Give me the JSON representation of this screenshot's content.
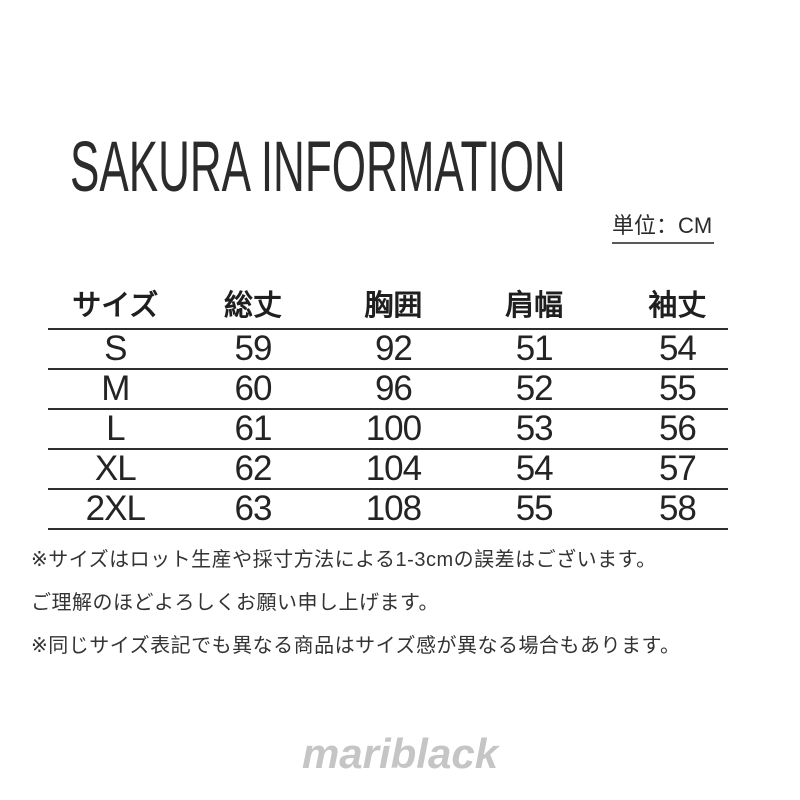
{
  "page": {
    "title": "SAKURA INFORMATION",
    "unit_label": "単位：CM",
    "watermark": "mariblack",
    "background": "#ffffff"
  },
  "size_table": {
    "columns": [
      "サイズ",
      "総丈",
      "胸囲",
      "肩幅",
      "袖丈"
    ],
    "rows": [
      [
        "S",
        "59",
        "92",
        "51",
        "54"
      ],
      [
        "M",
        "60",
        "96",
        "52",
        "55"
      ],
      [
        "L",
        "61",
        "100",
        "53",
        "56"
      ],
      [
        "XL",
        "62",
        "104",
        "54",
        "57"
      ],
      [
        "2XL",
        "63",
        "108",
        "55",
        "58"
      ]
    ]
  },
  "notes": {
    "line1": "※サイズはロット生産や採寸方法による1-3cmの誤差はございます。",
    "line2": "ご理解のほどよろしくお願い申し上げます。",
    "line3": "※同じサイズ表記でも異なる商品はサイズ感が異なる場合もあります。"
  },
  "colors": {
    "text": "#242424",
    "table_line": "#2e2e2e",
    "note_text": "#333333",
    "watermark": "#c5c5c5"
  },
  "chart_data": {
    "type": "table",
    "title": "SAKURA INFORMATION",
    "unit": "CM",
    "columns": [
      "サイズ",
      "総丈",
      "胸囲",
      "肩幅",
      "袖丈"
    ],
    "rows": [
      [
        "S",
        59,
        92,
        51,
        54
      ],
      [
        "M",
        60,
        96,
        52,
        55
      ],
      [
        "L",
        61,
        100,
        53,
        56
      ],
      [
        "XL",
        62,
        104,
        54,
        57
      ],
      [
        "2XL",
        63,
        108,
        55,
        58
      ]
    ]
  }
}
